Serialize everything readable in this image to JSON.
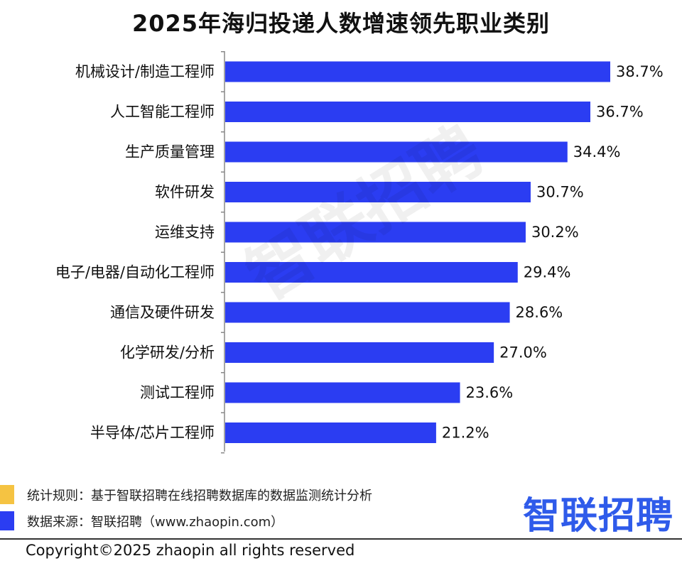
{
  "chart_data": {
    "type": "bar",
    "orientation": "horizontal",
    "title": "2025年海归投递人数增速领先职业类别",
    "categories": [
      "机械设计/制造工程师",
      "人工智能工程师",
      "生产质量管理",
      "软件研发",
      "运维支持",
      "电子/电器/自动化工程师",
      "通信及硬件研发",
      "化学研发/分析",
      "测试工程师",
      "半导体/芯片工程师"
    ],
    "values": [
      38.7,
      36.7,
      34.4,
      30.7,
      30.2,
      29.4,
      28.6,
      27.0,
      23.6,
      21.2
    ],
    "value_labels": [
      "38.7%",
      "36.7%",
      "34.4%",
      "30.7%",
      "30.2%",
      "29.4%",
      "28.6%",
      "27.0%",
      "23.6%",
      "21.2%"
    ],
    "xlim": [
      0,
      40
    ],
    "grid": false,
    "bar_color": "#2b3df2"
  },
  "watermark": "智联招聘",
  "footer": {
    "rule_text": "统计规则：基于智联招聘在线招聘数据库的数据监测统计分析",
    "source_text": "数据来源：智联招聘（www.zhaopin.com）",
    "rule_color": "#f5c342",
    "source_color": "#2b3df2",
    "brand_logo": "智联招聘",
    "copyright": "Copyright©2025 zhaopin all rights reserved"
  }
}
